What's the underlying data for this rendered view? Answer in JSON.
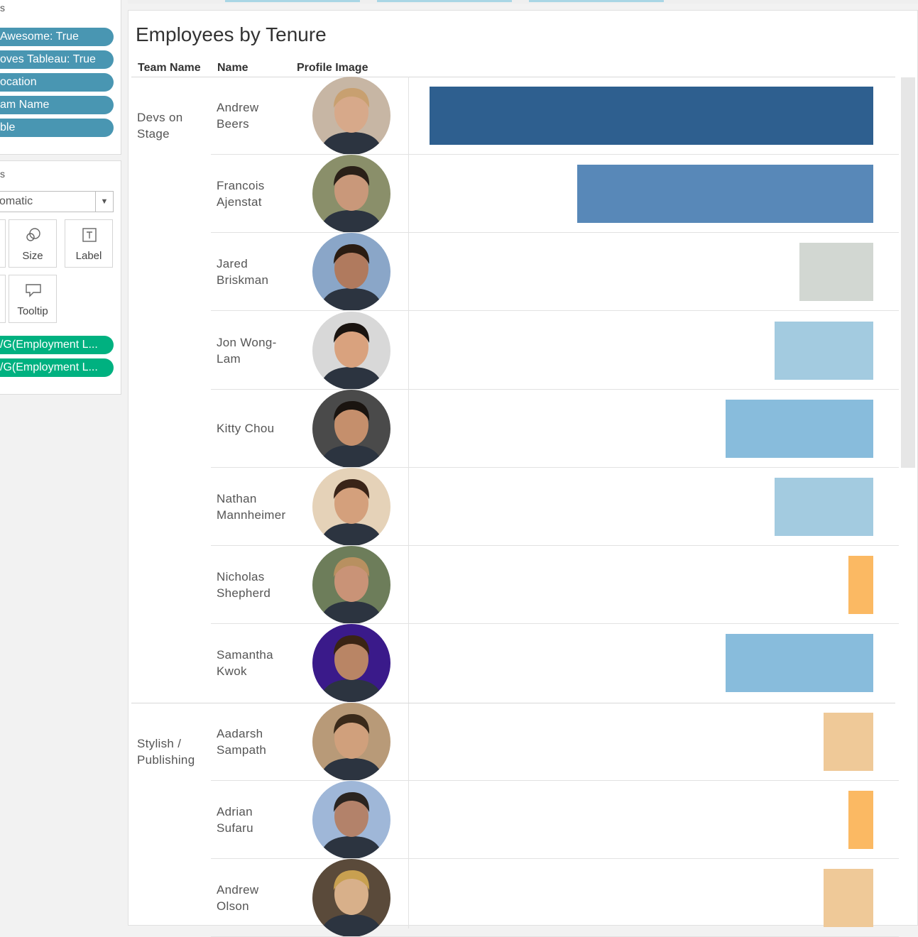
{
  "filters_card": {
    "title": "s",
    "pills": [
      "Awesome: True",
      "oves Tableau: True",
      "ocation",
      "am Name",
      "ble"
    ]
  },
  "marks_card": {
    "title": "s",
    "mark_type": "omatic",
    "buttons": {
      "size": "Size",
      "label": "Label",
      "tooltip": "Tooltip"
    },
    "measure_pills": [
      "/G(Employment L...",
      "/G(Employment L..."
    ]
  },
  "viz": {
    "title": "Employees by Tenure",
    "columns": {
      "team": "Team Name",
      "name": "Name",
      "image": "Profile Image"
    },
    "teams": [
      {
        "name": "Devs on\nStage"
      },
      {
        "name": "Stylish /\nPublishing"
      }
    ],
    "rows": [
      {
        "name": "Andrew\nBeers",
        "team_index": 0,
        "value": 1.0,
        "color": "#2e5f8f"
      },
      {
        "name": "Francois\nAjenstat",
        "team_index": 0,
        "value": 0.667,
        "color": "#5888b8"
      },
      {
        "name": "Jared\nBriskman",
        "team_index": 0,
        "value": 0.167,
        "color": "#d2d7d2"
      },
      {
        "name": "Jon Wong-\nLam",
        "team_index": 0,
        "value": 0.223,
        "color": "#a3cbe0"
      },
      {
        "name": "Kitty Chou",
        "team_index": 0,
        "value": 0.333,
        "color": "#88bcdc"
      },
      {
        "name": "Nathan\nMannheimer",
        "team_index": 0,
        "value": 0.223,
        "color": "#a3cbe0"
      },
      {
        "name": "Nicholas\nShepherd",
        "team_index": 0,
        "value": 0.056,
        "color": "#fbb963"
      },
      {
        "name": "Samantha\nKwok",
        "team_index": 0,
        "value": 0.333,
        "color": "#88bcdc"
      },
      {
        "name": "Aadarsh\nSampath",
        "team_index": 1,
        "value": 0.112,
        "color": "#efc998"
      },
      {
        "name": "Adrian\nSufaru",
        "team_index": 1,
        "value": 0.056,
        "color": "#fbb963"
      },
      {
        "name": "Andrew\nOlson",
        "team_index": 1,
        "value": 0.112,
        "color": "#efc998"
      }
    ]
  }
}
